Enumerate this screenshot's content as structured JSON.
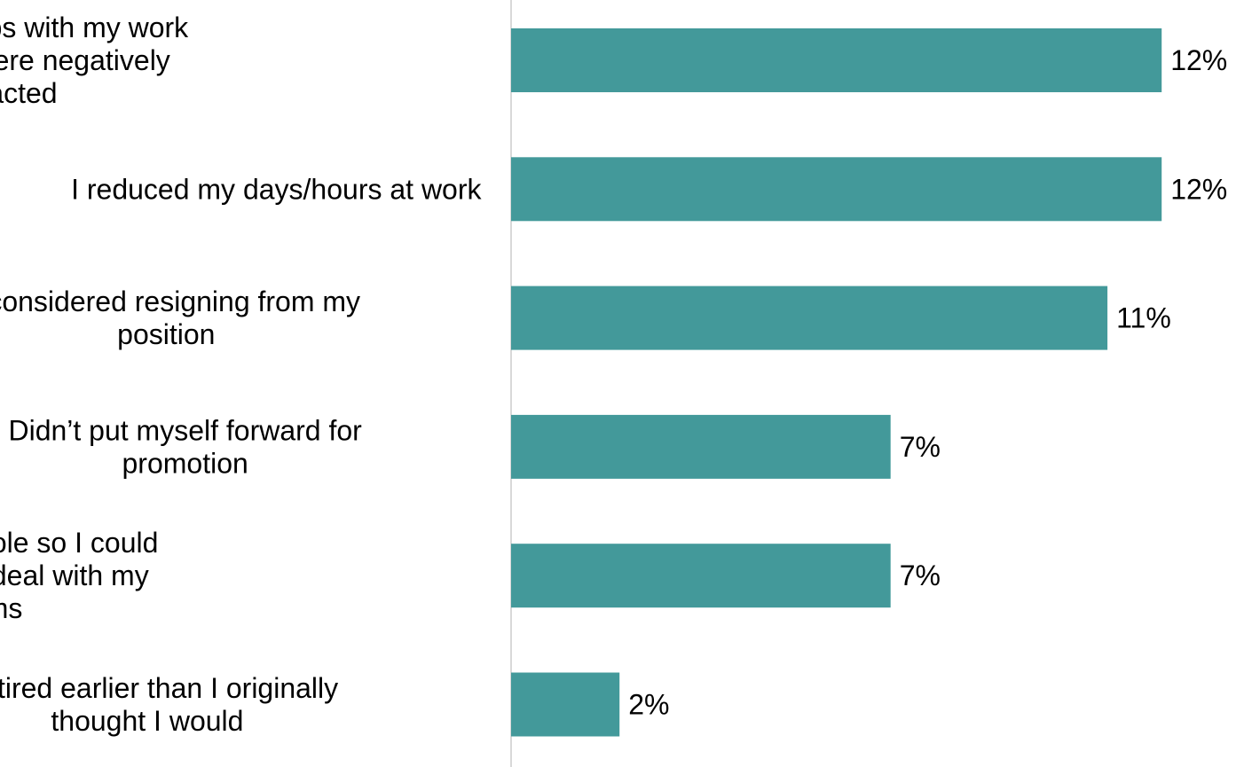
{
  "chart_data": {
    "type": "bar",
    "orientation": "horizontal",
    "categories": [
      "My relationships with my work colleagues were negatively impacted",
      "I reduced my days/hours at work",
      "I considered resigning from my position",
      "Didn’t put myself forward for promotion",
      "I changed my job role so I could better manage or deal with my symptoms",
      "I retired earlier than I originally thought I would"
    ],
    "category_lines": [
      [
        "My relationships with my work",
        "colleagues were negatively",
        "impacted"
      ],
      [
        "I reduced my days/hours at work"
      ],
      [
        "I considered resigning from my",
        "position"
      ],
      [
        "Didn’t put myself forward for",
        "promotion"
      ],
      [
        "I changed my job role so I could",
        "better manage or deal with my",
        "symptoms"
      ],
      [
        "I retired earlier than I originally",
        "thought I would"
      ]
    ],
    "values": [
      12,
      12,
      11,
      7,
      7,
      2
    ],
    "value_labels": [
      "12%",
      "12%",
      "11%",
      "7%",
      "7%",
      "2%"
    ],
    "unit": "%",
    "xlim": [
      0,
      12
    ],
    "title": "",
    "xlabel": "",
    "ylabel": "",
    "grid": false,
    "legend": "none",
    "bar_color": "#43999A",
    "axis_color": "#d9d9d9"
  }
}
